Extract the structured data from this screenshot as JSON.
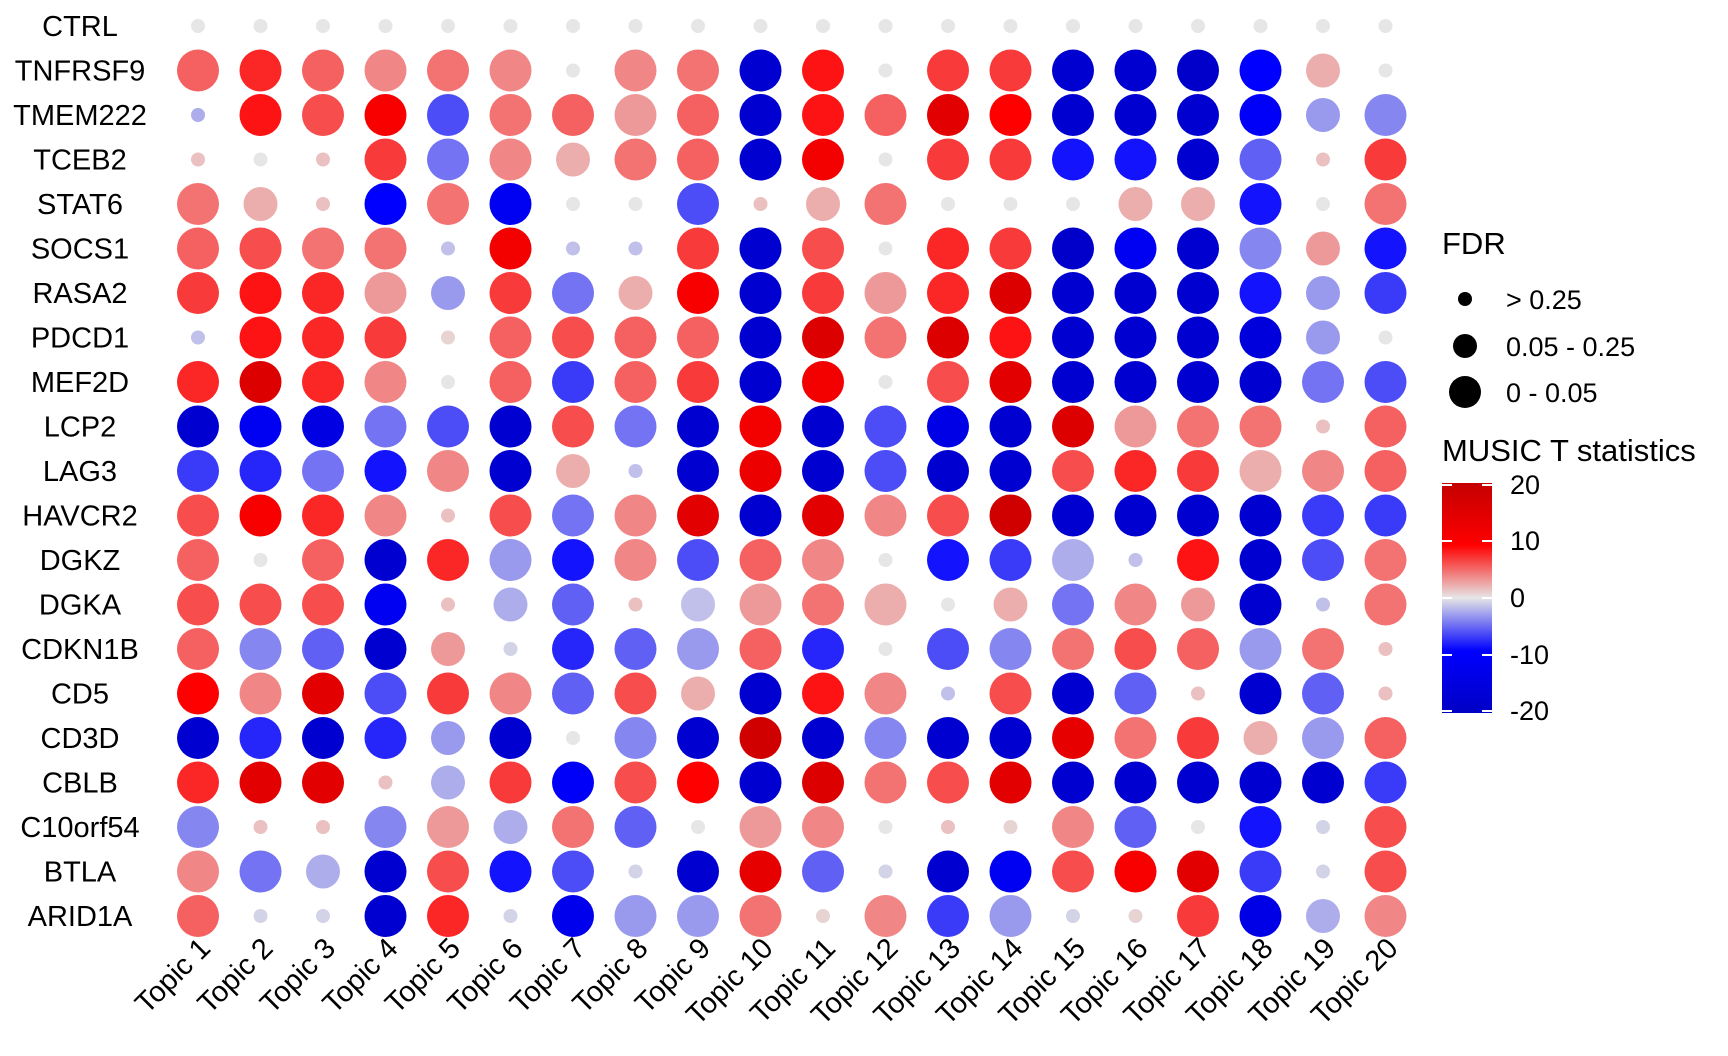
{
  "chart_data": {
    "type": "dotplot",
    "rows": [
      "CTRL",
      "TNFRSF9",
      "TMEM222",
      "TCEB2",
      "STAT6",
      "SOCS1",
      "RASA2",
      "PDCD1",
      "MEF2D",
      "LCP2",
      "LAG3",
      "HAVCR2",
      "DGKZ",
      "DGKA",
      "CDKN1B",
      "CD5",
      "CD3D",
      "CBLB",
      "C10orf54",
      "BTLA",
      "ARID1A"
    ],
    "columns": [
      "Topic 1",
      "Topic 2",
      "Topic 3",
      "Topic 4",
      "Topic 5",
      "Topic 6",
      "Topic 7",
      "Topic 8",
      "Topic 9",
      "Topic 10",
      "Topic 11",
      "Topic 12",
      "Topic 13",
      "Topic 14",
      "Topic 15",
      "Topic 16",
      "Topic 17",
      "Topic 18",
      "Topic 19",
      "Topic 20"
    ],
    "color_legend": {
      "title": "MUSIC T statistics",
      "ticks": [
        20,
        10,
        0,
        -10,
        -20
      ],
      "range": [
        -22,
        22
      ],
      "colors": [
        "#0000cc",
        "#0000ff",
        "#ffffff",
        "#ff0000",
        "#cc0000"
      ]
    },
    "size_legend": {
      "title": "FDR",
      "levels": [
        "> 0.25",
        "0.05 - 0.25",
        "0 - 0.05"
      ]
    },
    "fdr_codes": "0 = FDR > 0.25, 1 = FDR 0.05 - 0.25, 2 = FDR 0 - 0.05",
    "t_statistic": [
      [
        0,
        0,
        0,
        0,
        0,
        0,
        0,
        0,
        0,
        0,
        0,
        0,
        0,
        0,
        0,
        0,
        0,
        0,
        0,
        0
      ],
      [
        7,
        10,
        7,
        5,
        6,
        5,
        0,
        5,
        6,
        -20,
        11,
        0,
        9,
        9,
        -20,
        -20,
        -21,
        -12,
        3,
        0
      ],
      [
        -3,
        11,
        8,
        13,
        -8,
        6,
        7,
        4,
        7,
        -20,
        11,
        7,
        17,
        12,
        -20,
        -20,
        -20,
        -13,
        -4,
        -5
      ],
      [
        2,
        0,
        2,
        9,
        -6,
        5,
        3,
        6,
        7,
        -20,
        14,
        0,
        9,
        9,
        -11,
        -11,
        -20,
        -7,
        2,
        9
      ],
      [
        6,
        3,
        2,
        -12,
        6,
        -14,
        0,
        0,
        -8,
        2,
        3,
        6,
        0,
        0,
        0,
        3,
        3,
        -11,
        0,
        6
      ],
      [
        7,
        8,
        6,
        6,
        -2,
        14,
        -2,
        -2,
        9,
        -20,
        8,
        0,
        10,
        9,
        -21,
        -14,
        -20,
        -5,
        4,
        -11
      ],
      [
        9,
        11,
        10,
        4,
        -4,
        9,
        -6,
        3,
        13,
        -20,
        9,
        4,
        10,
        18,
        -20,
        -20,
        -20,
        -11,
        -4,
        -9
      ],
      [
        -2,
        11,
        10,
        9,
        1,
        7,
        8,
        7,
        7,
        -20,
        18,
        6,
        18,
        11,
        -20,
        -20,
        -20,
        -18,
        -4,
        0
      ],
      [
        10,
        18,
        10,
        5,
        0,
        7,
        -9,
        7,
        9,
        -20,
        14,
        0,
        8,
        17,
        -20,
        -20,
        -20,
        -20,
        -6,
        -8
      ],
      [
        -20,
        -14,
        -17,
        -6,
        -8,
        -20,
        8,
        -6,
        -20,
        14,
        -20,
        -8,
        -16,
        -20,
        18,
        4,
        6,
        6,
        2,
        7
      ],
      [
        -9,
        -10,
        -6,
        -11,
        5,
        -20,
        3,
        -2,
        -20,
        15,
        -20,
        -8,
        -20,
        -20,
        8,
        10,
        9,
        3,
        5,
        7
      ],
      [
        8,
        13,
        10,
        5,
        2,
        8,
        -6,
        5,
        17,
        -20,
        17,
        5,
        8,
        20,
        -20,
        -20,
        -20,
        -20,
        -9,
        -9
      ],
      [
        7,
        0,
        7,
        -20,
        10,
        -4,
        -11,
        5,
        -8,
        7,
        5,
        0,
        -11,
        -9,
        -3,
        -2,
        11,
        -20,
        -8,
        6
      ],
      [
        8,
        8,
        8,
        -14,
        2,
        -3,
        -7,
        2,
        -2,
        4,
        6,
        3,
        0,
        3,
        -6,
        5,
        4,
        -20,
        -2,
        6
      ],
      [
        7,
        -5,
        -7,
        -20,
        4,
        -1,
        -10,
        -7,
        -4,
        7,
        -10,
        0,
        -8,
        -5,
        6,
        8,
        7,
        -4,
        6,
        2
      ],
      [
        12,
        5,
        17,
        -8,
        9,
        5,
        -7,
        8,
        3,
        -20,
        11,
        5,
        -2,
        8,
        -20,
        -7,
        2,
        -20,
        -7,
        2
      ],
      [
        -20,
        -10,
        -20,
        -10,
        -4,
        -20,
        0,
        -5,
        -20,
        20,
        -20,
        -5,
        -20,
        -20,
        16,
        6,
        9,
        3,
        -4,
        7
      ],
      [
        10,
        17,
        17,
        2,
        -3,
        9,
        -13,
        8,
        12,
        -20,
        18,
        6,
        8,
        17,
        -20,
        -20,
        -20,
        -20,
        -20,
        -9
      ],
      [
        -5,
        2,
        2,
        -5,
        4,
        -3,
        6,
        -7,
        0,
        4,
        5,
        0,
        2,
        1,
        5,
        -7,
        0,
        -11,
        -1,
        8
      ],
      [
        5,
        -6,
        -3,
        -20,
        8,
        -11,
        -8,
        -1,
        -20,
        16,
        -7,
        -1,
        -20,
        -14,
        8,
        13,
        17,
        -9,
        -1,
        8
      ],
      [
        7,
        -1,
        -1,
        -20,
        10,
        -1,
        -15,
        -4,
        -4,
        6,
        1,
        5,
        -9,
        -4,
        -1,
        1,
        9,
        -16,
        -3,
        5
      ]
    ],
    "fdr_level": [
      [
        0,
        0,
        0,
        0,
        0,
        0,
        0,
        0,
        0,
        0,
        0,
        0,
        0,
        0,
        0,
        0,
        0,
        0,
        0,
        0
      ],
      [
        2,
        2,
        2,
        2,
        2,
        2,
        0,
        2,
        2,
        2,
        2,
        0,
        2,
        2,
        2,
        2,
        2,
        2,
        1,
        0
      ],
      [
        0,
        2,
        2,
        2,
        2,
        2,
        2,
        2,
        2,
        2,
        2,
        2,
        2,
        2,
        2,
        2,
        2,
        2,
        1,
        2
      ],
      [
        0,
        0,
        0,
        2,
        2,
        2,
        1,
        2,
        2,
        2,
        2,
        0,
        2,
        2,
        2,
        2,
        2,
        2,
        0,
        2
      ],
      [
        2,
        1,
        0,
        2,
        2,
        2,
        0,
        0,
        2,
        0,
        1,
        2,
        0,
        0,
        0,
        1,
        1,
        2,
        0,
        2
      ],
      [
        2,
        2,
        2,
        2,
        0,
        2,
        0,
        0,
        2,
        2,
        2,
        0,
        2,
        2,
        2,
        2,
        2,
        2,
        1,
        2
      ],
      [
        2,
        2,
        2,
        2,
        1,
        2,
        2,
        1,
        2,
        2,
        2,
        2,
        2,
        2,
        2,
        2,
        2,
        2,
        1,
        2
      ],
      [
        0,
        2,
        2,
        2,
        0,
        2,
        2,
        2,
        2,
        2,
        2,
        2,
        2,
        2,
        2,
        2,
        2,
        2,
        1,
        0
      ],
      [
        2,
        2,
        2,
        2,
        0,
        2,
        2,
        2,
        2,
        2,
        2,
        0,
        2,
        2,
        2,
        2,
        2,
        2,
        2,
        2
      ],
      [
        2,
        2,
        2,
        2,
        2,
        2,
        2,
        2,
        2,
        2,
        2,
        2,
        2,
        2,
        2,
        2,
        2,
        2,
        0,
        2
      ],
      [
        2,
        2,
        2,
        2,
        2,
        2,
        1,
        0,
        2,
        2,
        2,
        2,
        2,
        2,
        2,
        2,
        2,
        2,
        2,
        2
      ],
      [
        2,
        2,
        2,
        2,
        0,
        2,
        2,
        2,
        2,
        2,
        2,
        2,
        2,
        2,
        2,
        2,
        2,
        2,
        2,
        2
      ],
      [
        2,
        0,
        2,
        2,
        2,
        2,
        2,
        2,
        2,
        2,
        2,
        0,
        2,
        2,
        2,
        0,
        2,
        2,
        2,
        2
      ],
      [
        2,
        2,
        2,
        2,
        0,
        1,
        2,
        0,
        1,
        2,
        2,
        2,
        0,
        1,
        2,
        2,
        1,
        2,
        0,
        2
      ],
      [
        2,
        2,
        2,
        2,
        1,
        0,
        2,
        2,
        2,
        2,
        2,
        0,
        2,
        2,
        2,
        2,
        2,
        2,
        2,
        0
      ],
      [
        2,
        2,
        2,
        2,
        2,
        2,
        2,
        2,
        1,
        2,
        2,
        2,
        0,
        2,
        2,
        2,
        0,
        2,
        2,
        0
      ],
      [
        2,
        2,
        2,
        2,
        1,
        2,
        0,
        2,
        2,
        2,
        2,
        2,
        2,
        2,
        2,
        2,
        2,
        1,
        2,
        2
      ],
      [
        2,
        2,
        2,
        0,
        1,
        2,
        2,
        2,
        2,
        2,
        2,
        2,
        2,
        2,
        2,
        2,
        2,
        2,
        2,
        2
      ],
      [
        2,
        0,
        0,
        2,
        2,
        1,
        2,
        2,
        0,
        2,
        2,
        0,
        0,
        0,
        2,
        2,
        0,
        2,
        0,
        2
      ],
      [
        2,
        2,
        1,
        2,
        2,
        2,
        2,
        0,
        2,
        2,
        2,
        0,
        2,
        2,
        2,
        2,
        2,
        2,
        0,
        2
      ],
      [
        2,
        0,
        0,
        2,
        2,
        0,
        2,
        2,
        2,
        2,
        0,
        2,
        2,
        2,
        0,
        0,
        2,
        2,
        1,
        2
      ]
    ]
  }
}
